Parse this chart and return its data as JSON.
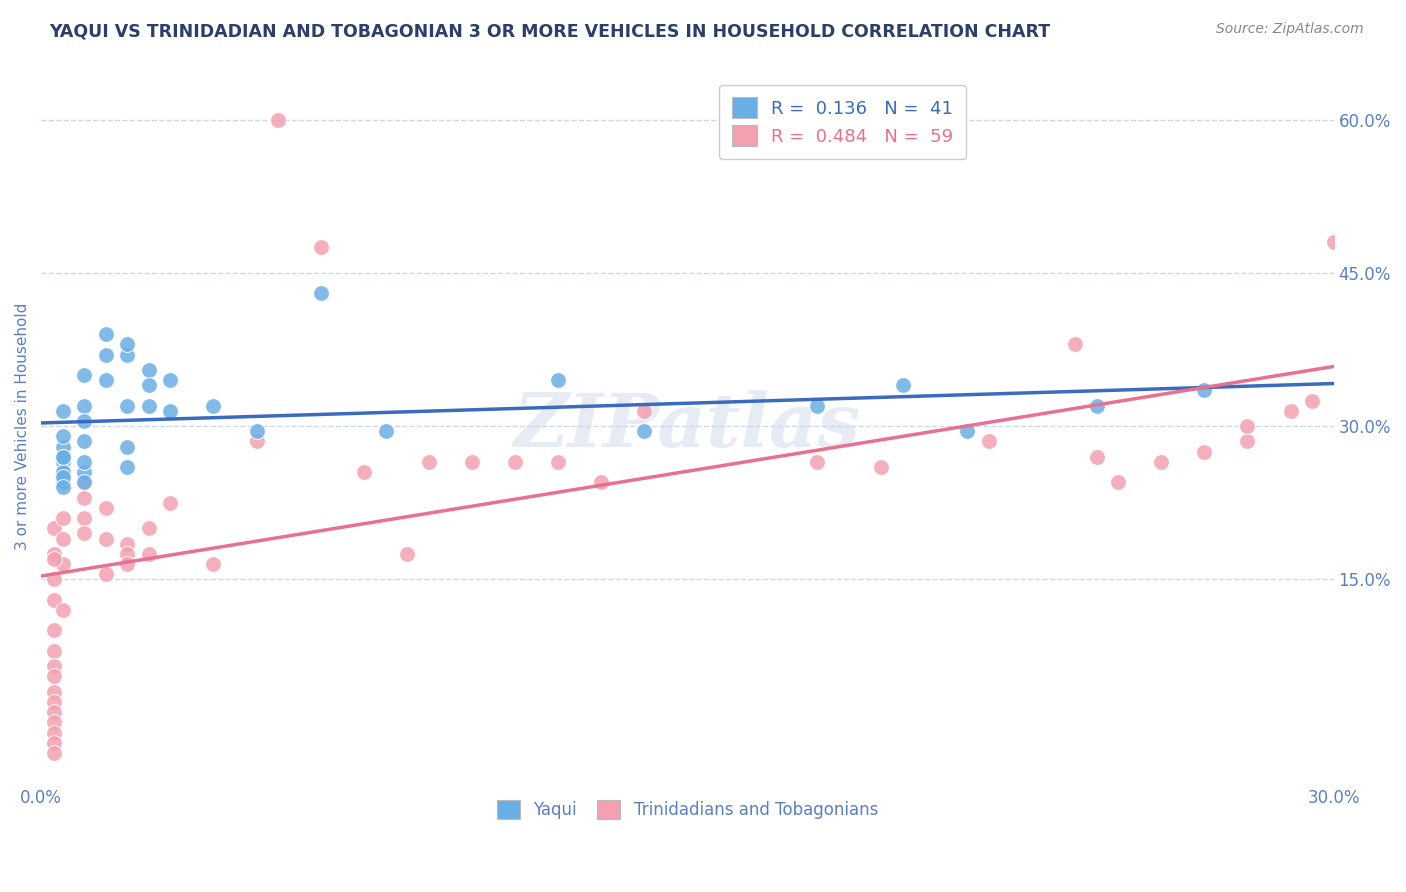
{
  "title": "YAQUI VS TRINIDADIAN AND TOBAGONIAN 3 OR MORE VEHICLES IN HOUSEHOLD CORRELATION CHART",
  "source": "Source: ZipAtlas.com",
  "ylabel": "3 or more Vehicles in Household",
  "xlim": [
    0.0,
    0.3
  ],
  "ylim": [
    -0.05,
    0.65
  ],
  "x_ticks": [
    0.0,
    0.05,
    0.1,
    0.15,
    0.2,
    0.25,
    0.3
  ],
  "x_tick_labels": [
    "0.0%",
    "",
    "",
    "",
    "",
    "",
    "30.0%"
  ],
  "y_ticks_right": [
    0.15,
    0.3,
    0.45,
    0.6
  ],
  "y_tick_labels_right": [
    "15.0%",
    "30.0%",
    "45.0%",
    "60.0%"
  ],
  "watermark": "ZIPatlas",
  "legend_blue_R": "0.136",
  "legend_blue_N": "41",
  "legend_pink_R": "0.484",
  "legend_pink_N": "59",
  "blue_color": "#6aaee6",
  "pink_color": "#f4a0b0",
  "line_blue_color": "#3a6bbf",
  "line_pink_color": "#e87090",
  "title_color": "#2c3e6b",
  "axis_label_color": "#5b7fc4",
  "grid_color": "#c8d8f0",
  "background_color": "#ffffff",
  "yaqui_x": [
    0.005,
    0.005,
    0.005,
    0.005,
    0.005,
    0.005,
    0.01,
    0.01,
    0.01,
    0.01,
    0.01,
    0.015,
    0.015,
    0.02,
    0.02,
    0.02,
    0.02,
    0.025,
    0.025,
    0.025,
    0.03,
    0.03,
    0.04,
    0.05,
    0.065,
    0.08,
    0.12,
    0.14,
    0.18,
    0.2,
    0.215,
    0.245,
    0.27,
    0.005,
    0.005,
    0.005,
    0.005,
    0.01,
    0.01,
    0.015,
    0.02
  ],
  "yaqui_y": [
    0.265,
    0.28,
    0.245,
    0.27,
    0.255,
    0.29,
    0.285,
    0.255,
    0.245,
    0.32,
    0.305,
    0.39,
    0.37,
    0.28,
    0.37,
    0.38,
    0.26,
    0.355,
    0.34,
    0.32,
    0.345,
    0.315,
    0.32,
    0.295,
    0.43,
    0.295,
    0.345,
    0.295,
    0.32,
    0.34,
    0.295,
    0.32,
    0.335,
    0.315,
    0.25,
    0.24,
    0.27,
    0.265,
    0.35,
    0.345,
    0.32
  ],
  "tnt_x": [
    0.003,
    0.003,
    0.003,
    0.003,
    0.003,
    0.003,
    0.003,
    0.003,
    0.003,
    0.003,
    0.003,
    0.003,
    0.003,
    0.003,
    0.003,
    0.005,
    0.005,
    0.005,
    0.005,
    0.005,
    0.01,
    0.01,
    0.01,
    0.01,
    0.015,
    0.015,
    0.015,
    0.02,
    0.02,
    0.02,
    0.025,
    0.025,
    0.03,
    0.04,
    0.05,
    0.055,
    0.065,
    0.075,
    0.085,
    0.09,
    0.1,
    0.11,
    0.12,
    0.13,
    0.14,
    0.18,
    0.195,
    0.22,
    0.24,
    0.245,
    0.25,
    0.26,
    0.27,
    0.28,
    0.28,
    0.29,
    0.295,
    0.3,
    0.003
  ],
  "tnt_y": [
    0.2,
    0.175,
    0.15,
    0.13,
    0.1,
    0.08,
    0.065,
    0.055,
    0.04,
    0.03,
    0.02,
    0.01,
    0.0,
    -0.01,
    -0.02,
    0.21,
    0.19,
    0.12,
    0.255,
    0.165,
    0.245,
    0.23,
    0.21,
    0.195,
    0.22,
    0.19,
    0.155,
    0.185,
    0.175,
    0.165,
    0.2,
    0.175,
    0.225,
    0.165,
    0.285,
    0.6,
    0.475,
    0.255,
    0.175,
    0.265,
    0.265,
    0.265,
    0.265,
    0.245,
    0.315,
    0.265,
    0.26,
    0.285,
    0.38,
    0.27,
    0.245,
    0.265,
    0.275,
    0.285,
    0.3,
    0.315,
    0.325,
    0.48,
    0.17
  ]
}
